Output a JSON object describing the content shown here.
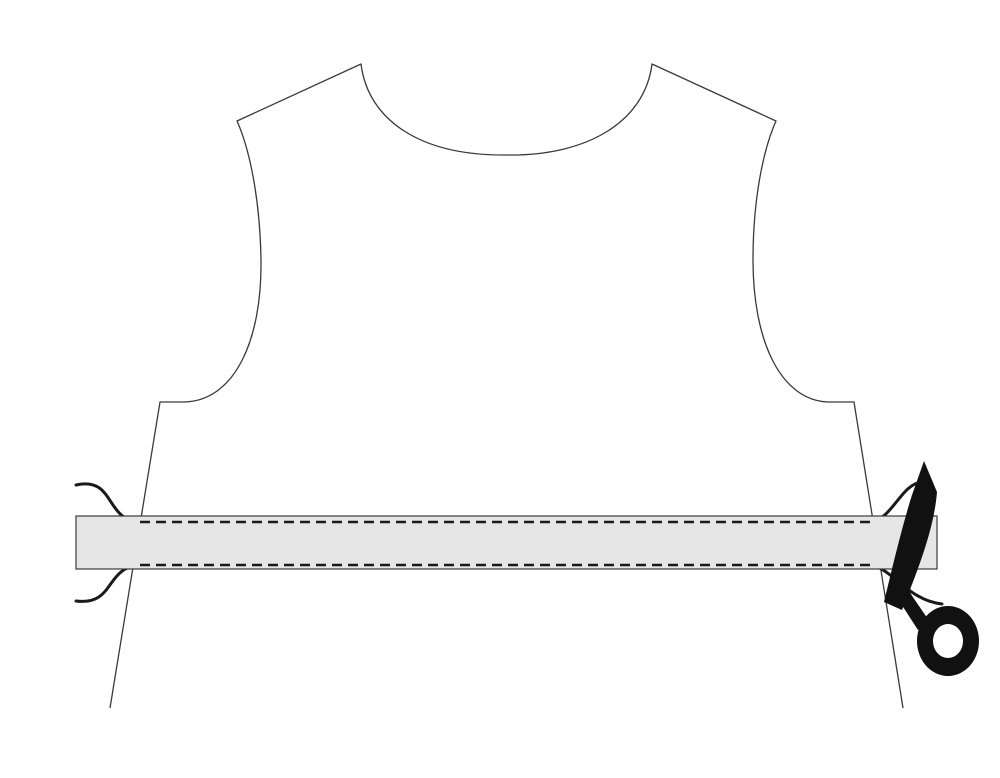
{
  "diagram": {
    "kind": "sewing-illustration",
    "elements": {
      "bodice": {
        "icon": "bodice-pattern-piece",
        "outline_color": "#3a3a3a"
      },
      "band": {
        "icon": "fabric-band-strip",
        "fill_color": "#e6e6e6",
        "outline_color": "#3a3a3a"
      },
      "stitches": {
        "icon": "dashed-stitch-line",
        "count": 2,
        "color": "#1a1a1a"
      },
      "threads": {
        "icon": "loose-thread-tail",
        "count": 4,
        "color": "#1a1a1a"
      },
      "scissors": {
        "icon": "scissors-icon",
        "color": "#111111"
      }
    }
  }
}
